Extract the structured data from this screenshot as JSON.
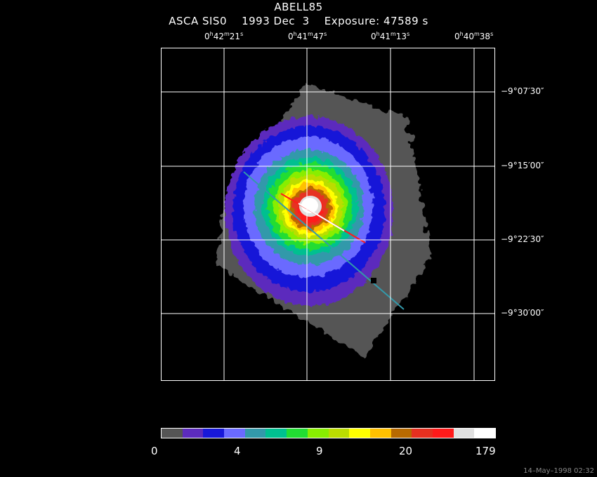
{
  "title": "ABELL85",
  "subtitle": {
    "instrument": "ASCA SIS0",
    "date": "1993 Dec  3",
    "exposure": "Exposure: 47589 s"
  },
  "ra_ticks": [
    {
      "h": "0",
      "m": "42",
      "s": "21"
    },
    {
      "h": "0",
      "m": "41",
      "s": "47"
    },
    {
      "h": "0",
      "m": "41",
      "s": "13"
    },
    {
      "h": "0",
      "m": "40",
      "s": "38"
    }
  ],
  "dec_ticks": [
    "−9°07′30″",
    "−9°15′00″",
    "−9°22′30″",
    "−9°30′00″"
  ],
  "colorbar": {
    "colors": [
      "#555555",
      "#5c2bbd",
      "#1818d8",
      "#6a6aff",
      "#3399aa",
      "#00c090",
      "#22dd33",
      "#88ee00",
      "#bbdd00",
      "#ffff00",
      "#ffc000",
      "#b86a00",
      "#e63020",
      "#ff1a1a",
      "#e0e0e0",
      "#ffffff"
    ],
    "labels": [
      "0",
      "4",
      "9",
      "20",
      "179"
    ]
  },
  "footer": "14–May–1998 02:32"
}
